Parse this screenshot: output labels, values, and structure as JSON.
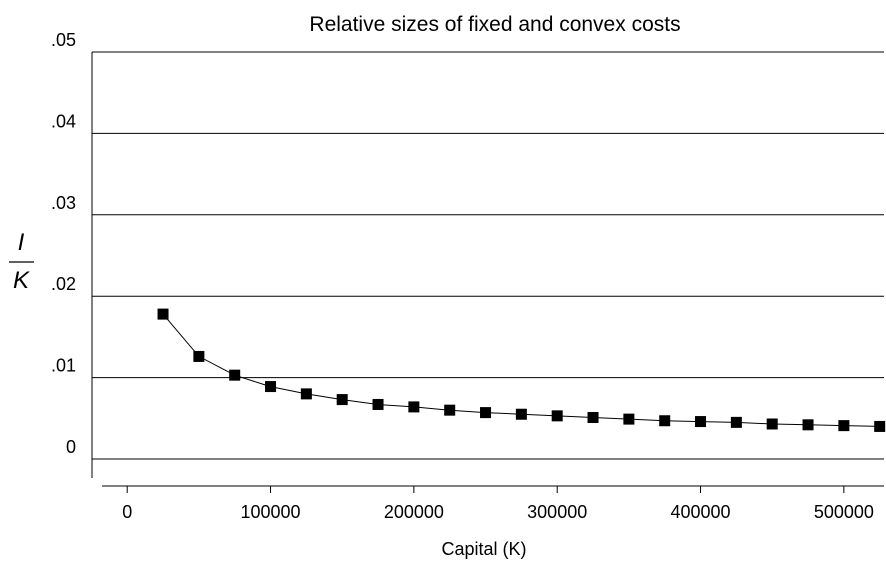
{
  "chart_data": {
    "type": "line",
    "title": "Relative sizes of fixed and convex costs",
    "xlabel": "Capital (K)",
    "ylabel": {
      "numerator": "I",
      "denominator": "K"
    },
    "xlim": [
      -12000,
      528000
    ],
    "ylim": [
      0,
      0.05
    ],
    "x_ticks": [
      0,
      100000,
      200000,
      300000,
      400000,
      500000
    ],
    "x_tick_labels": [
      "0",
      "100000",
      "200000",
      "300000",
      "400000",
      "500000"
    ],
    "y_ticks": [
      0,
      0.01,
      0.02,
      0.03,
      0.04,
      0.05
    ],
    "y_tick_labels": [
      "0",
      ".01",
      ".02",
      ".03",
      ".04",
      ".05"
    ],
    "grid": "horizontal",
    "marker": "square",
    "color": "#000000",
    "series": [
      {
        "x": [
          25000,
          50000,
          75000,
          100000,
          125000,
          150000,
          175000,
          200000,
          225000,
          250000,
          275000,
          300000,
          325000,
          350000,
          375000,
          400000,
          425000,
          450000,
          475000,
          500000,
          525000
        ],
        "y": [
          0.0178,
          0.0126,
          0.0103,
          0.0089,
          0.008,
          0.0073,
          0.0067,
          0.0064,
          0.006,
          0.0057,
          0.0055,
          0.0053,
          0.0051,
          0.0049,
          0.0047,
          0.0046,
          0.0045,
          0.0043,
          0.0042,
          0.0041,
          0.004
        ]
      }
    ]
  }
}
